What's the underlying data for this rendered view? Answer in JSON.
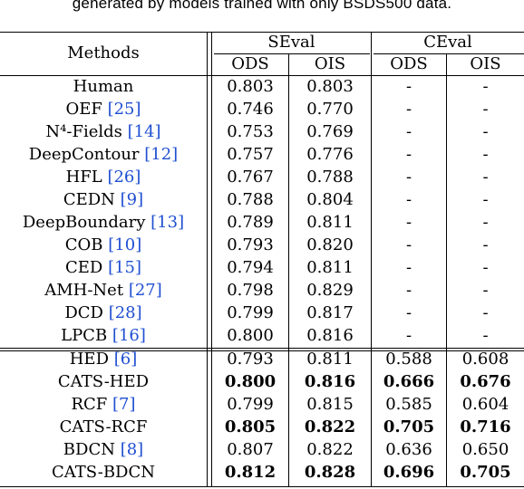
{
  "caption": "generated by models trained with only BSDS500 data.",
  "header": {
    "methods": "Methods",
    "seval": "SEval",
    "ceval": "CEval",
    "sub": [
      "ODS",
      "OIS",
      "ODS",
      "OIS"
    ]
  },
  "rows": [
    {
      "name": "Human",
      "ref": "",
      "seval_ods": "0.803",
      "seval_ois": "0.803",
      "ceval_ods": "-",
      "ceval_ois": "-",
      "bold": false
    },
    {
      "name": "OEF",
      "ref": "[25]",
      "seval_ods": "0.746",
      "seval_ois": "0.770",
      "ceval_ods": "-",
      "ceval_ois": "-",
      "bold": false
    },
    {
      "name": "N⁴-Fields",
      "ref": "[14]",
      "seval_ods": "0.753",
      "seval_ois": "0.769",
      "ceval_ods": "-",
      "ceval_ois": "-",
      "bold": false
    },
    {
      "name": "DeepContour",
      "ref": "[12]",
      "seval_ods": "0.757",
      "seval_ois": "0.776",
      "ceval_ods": "-",
      "ceval_ois": "-",
      "bold": false
    },
    {
      "name": "HFL",
      "ref": "[26]",
      "seval_ods": "0.767",
      "seval_ois": "0.788",
      "ceval_ods": "-",
      "ceval_ois": "-",
      "bold": false
    },
    {
      "name": "CEDN",
      "ref": "[9]",
      "seval_ods": "0.788",
      "seval_ois": "0.804",
      "ceval_ods": "-",
      "ceval_ois": "-",
      "bold": false
    },
    {
      "name": "DeepBoundary",
      "ref": "[13]",
      "seval_ods": "0.789",
      "seval_ois": "0.811",
      "ceval_ods": "-",
      "ceval_ois": "-",
      "bold": false
    },
    {
      "name": "COB",
      "ref": "[10]",
      "seval_ods": "0.793",
      "seval_ois": "0.820",
      "ceval_ods": "-",
      "ceval_ois": "-",
      "bold": false
    },
    {
      "name": "CED",
      "ref": "[15]",
      "seval_ods": "0.794",
      "seval_ois": "0.811",
      "ceval_ods": "-",
      "ceval_ois": "-",
      "bold": false
    },
    {
      "name": "AMH-Net",
      "ref": "[27]",
      "seval_ods": "0.798",
      "seval_ois": "0.829",
      "ceval_ods": "-",
      "ceval_ois": "-",
      "bold": false
    },
    {
      "name": "DCD",
      "ref": "[28]",
      "seval_ods": "0.799",
      "seval_ois": "0.817",
      "ceval_ods": "-",
      "ceval_ois": "-",
      "bold": false
    },
    {
      "name": "LPCB",
      "ref": "[16]",
      "seval_ods": "0.800",
      "seval_ois": "0.816",
      "ceval_ods": "-",
      "ceval_ois": "-",
      "bold": false
    },
    {
      "name": "HED",
      "ref": "[6]",
      "seval_ods": "0.793",
      "seval_ois": "0.811",
      "ceval_ods": "0.588",
      "ceval_ois": "0.608",
      "bold": false
    },
    {
      "name": "CATS-HED",
      "ref": "",
      "seval_ods": "0.800",
      "seval_ois": "0.816",
      "ceval_ods": "0.666",
      "ceval_ois": "0.676",
      "bold": true
    },
    {
      "name": "RCF",
      "ref": "[7]",
      "seval_ods": "0.799",
      "seval_ois": "0.815",
      "ceval_ods": "0.585",
      "ceval_ois": "0.604",
      "bold": false
    },
    {
      "name": "CATS-RCF",
      "ref": "",
      "seval_ods": "0.805",
      "seval_ois": "0.822",
      "ceval_ods": "0.705",
      "ceval_ois": "0.716",
      "bold": true
    },
    {
      "name": "BDCN",
      "ref": "[8]",
      "seval_ods": "0.807",
      "seval_ois": "0.822",
      "ceval_ods": "0.636",
      "ceval_ois": "0.650",
      "bold": false
    },
    {
      "name": "CATS-BDCN",
      "ref": "",
      "seval_ods": "0.812",
      "seval_ois": "0.828",
      "ceval_ods": "0.696",
      "ceval_ois": "0.705",
      "bold": true
    }
  ]
}
